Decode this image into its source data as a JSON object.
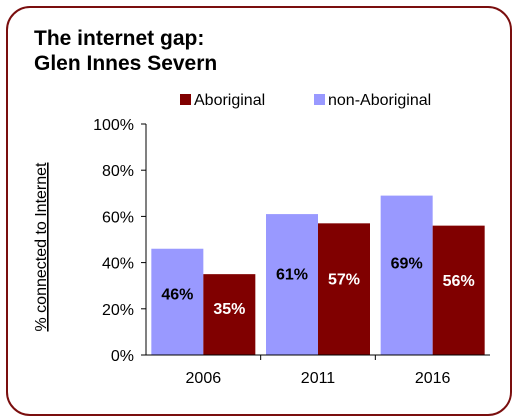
{
  "chart_data": {
    "type": "bar",
    "title_line1": "The internet gap:",
    "title_line2": "Glen Innes Severn",
    "ylabel": "% connected to Internet",
    "xlabel": "",
    "categories": [
      "2006",
      "2011",
      "2016"
    ],
    "series": [
      {
        "name": "non-Aboriginal",
        "values": [
          46,
          61,
          69
        ],
        "labels": [
          "46%",
          "61%",
          "69%"
        ],
        "color": "#9999ff",
        "label_color": "#000000"
      },
      {
        "name": "Aboriginal",
        "values": [
          35,
          57,
          56
        ],
        "labels": [
          "35%",
          "57%",
          "56%"
        ],
        "color": "#800000",
        "label_color": "#ffffff"
      }
    ],
    "legend_order": [
      "Aboriginal",
      "non-Aboriginal"
    ],
    "legend_position": "top",
    "ylim": [
      0,
      100
    ],
    "yticks": [
      0,
      20,
      40,
      60,
      80,
      100
    ],
    "ytick_labels": [
      "0%",
      "20%",
      "40%",
      "60%",
      "80%",
      "100%"
    ],
    "grid": false,
    "frame_color": "#7a0e0e"
  }
}
